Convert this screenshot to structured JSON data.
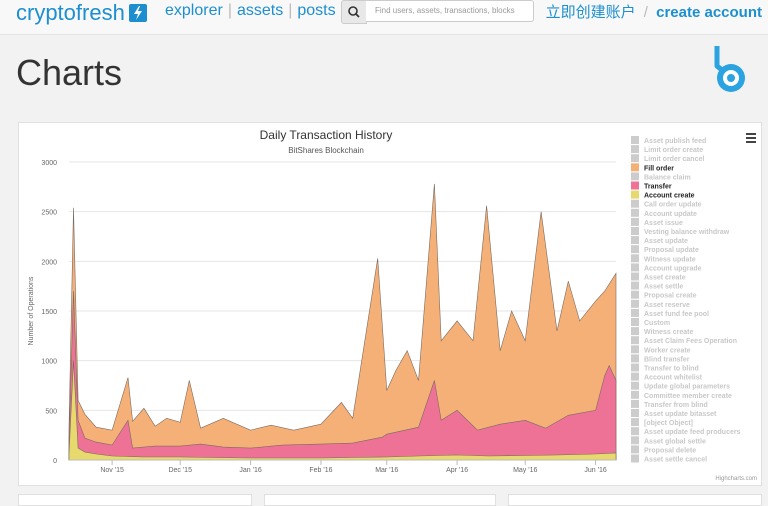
{
  "nav": {
    "brand": "cryptofresh",
    "links": [
      "explorer",
      "assets",
      "posts"
    ],
    "search_placeholder": "Find users, assets, transactions, blocks",
    "signup_label": "立即创建账户",
    "create_label": "create account"
  },
  "page": {
    "title": "Charts"
  },
  "chart_data": {
    "type": "area",
    "stacked": true,
    "title": "Daily Transaction History",
    "subtitle": "BitShares Blockchain",
    "ylabel": "Number of Operations",
    "xlabel": "",
    "ylim": [
      0,
      3000
    ],
    "yticks": [
      0,
      500,
      1000,
      1500,
      2000,
      2500,
      3000
    ],
    "x_ticks": [
      "Nov '15",
      "Dec '15",
      "Jan '16",
      "Feb '16",
      "Mar '16",
      "Apr '16",
      "May '16",
      "Jun '16"
    ],
    "x_range": [
      "2015-10-13",
      "2016-06-10"
    ],
    "grid": true,
    "legend_position": "right",
    "credits": "Highcharts.com",
    "colors": {
      "account_create": "#e7d96d",
      "transfer": "#ee7196",
      "fill_order": "#f5b078",
      "outline": "#7a6a60"
    },
    "legend": [
      {
        "name": "Asset publish feed",
        "active": false
      },
      {
        "name": "Limit order create",
        "active": false
      },
      {
        "name": "Limit order cancel",
        "active": false
      },
      {
        "name": "Fill order",
        "active": true,
        "color": "#f5b078"
      },
      {
        "name": "Balance claim",
        "active": false
      },
      {
        "name": "Transfer",
        "active": true,
        "color": "#ee7196"
      },
      {
        "name": "Account create",
        "active": true,
        "color": "#e7d96d"
      },
      {
        "name": "Call order update",
        "active": false
      },
      {
        "name": "Account update",
        "active": false
      },
      {
        "name": "Asset issue",
        "active": false
      },
      {
        "name": "Vesting balance withdraw",
        "active": false
      },
      {
        "name": "Asset update",
        "active": false
      },
      {
        "name": "Proposal update",
        "active": false
      },
      {
        "name": "Witness update",
        "active": false
      },
      {
        "name": "Account upgrade",
        "active": false
      },
      {
        "name": "Asset create",
        "active": false
      },
      {
        "name": "Asset settle",
        "active": false
      },
      {
        "name": "Proposal create",
        "active": false
      },
      {
        "name": "Asset reserve",
        "active": false
      },
      {
        "name": "Asset fund fee pool",
        "active": false
      },
      {
        "name": "Custom",
        "active": false
      },
      {
        "name": "Witness create",
        "active": false
      },
      {
        "name": "Asset Claim Fees Operation",
        "active": false
      },
      {
        "name": "Worker create",
        "active": false
      },
      {
        "name": "Blind transfer",
        "active": false
      },
      {
        "name": "Transfer to blind",
        "active": false
      },
      {
        "name": "Account whitelist",
        "active": false
      },
      {
        "name": "Update global parameters",
        "active": false
      },
      {
        "name": "Committee member create",
        "active": false
      },
      {
        "name": "Transfer from blind",
        "active": false
      },
      {
        "name": "Asset update bitasset",
        "active": false
      },
      {
        "name": "[object Object]",
        "active": false
      },
      {
        "name": "Asset update feed producers",
        "active": false
      },
      {
        "name": "Asset global settle",
        "active": false
      },
      {
        "name": "Proposal delete",
        "active": false
      },
      {
        "name": "Asset settle cancel",
        "active": false
      }
    ],
    "series_points": [
      {
        "name": "Account create",
        "values": [
          [
            "2015-10-13",
            60
          ],
          [
            "2015-10-15",
            1000
          ],
          [
            "2015-10-17",
            120
          ],
          [
            "2015-10-20",
            80
          ],
          [
            "2015-10-25",
            60
          ],
          [
            "2015-11-01",
            40
          ],
          [
            "2015-11-15",
            30
          ],
          [
            "2015-12-01",
            30
          ],
          [
            "2015-12-15",
            25
          ],
          [
            "2016-01-01",
            20
          ],
          [
            "2016-01-15",
            20
          ],
          [
            "2016-02-01",
            20
          ],
          [
            "2016-02-15",
            25
          ],
          [
            "2016-03-01",
            30
          ],
          [
            "2016-03-15",
            40
          ],
          [
            "2016-04-01",
            50
          ],
          [
            "2016-04-15",
            40
          ],
          [
            "2016-05-01",
            45
          ],
          [
            "2016-05-15",
            50
          ],
          [
            "2016-06-01",
            60
          ],
          [
            "2016-06-10",
            70
          ]
        ]
      },
      {
        "name": "Transfer",
        "values": [
          [
            "2015-10-13",
            200
          ],
          [
            "2015-10-15",
            1700
          ],
          [
            "2015-10-17",
            400
          ],
          [
            "2015-10-20",
            220
          ],
          [
            "2015-10-25",
            180
          ],
          [
            "2015-11-01",
            150
          ],
          [
            "2015-11-08",
            400
          ],
          [
            "2015-11-10",
            120
          ],
          [
            "2015-11-20",
            140
          ],
          [
            "2015-12-01",
            140
          ],
          [
            "2015-12-10",
            160
          ],
          [
            "2015-12-20",
            130
          ],
          [
            "2016-01-01",
            120
          ],
          [
            "2016-01-15",
            150
          ],
          [
            "2016-02-01",
            160
          ],
          [
            "2016-02-15",
            170
          ],
          [
            "2016-02-28",
            230
          ],
          [
            "2016-03-01",
            260
          ],
          [
            "2016-03-15",
            330
          ],
          [
            "2016-03-22",
            800
          ],
          [
            "2016-03-25",
            400
          ],
          [
            "2016-04-01",
            500
          ],
          [
            "2016-04-10",
            300
          ],
          [
            "2016-04-20",
            360
          ],
          [
            "2016-05-01",
            400
          ],
          [
            "2016-05-10",
            320
          ],
          [
            "2016-05-20",
            450
          ],
          [
            "2016-06-01",
            500
          ],
          [
            "2016-06-05",
            850
          ],
          [
            "2016-06-07",
            950
          ],
          [
            "2016-06-10",
            800
          ]
        ]
      },
      {
        "name": "Fill order",
        "values": [
          [
            "2015-10-13",
            320
          ],
          [
            "2015-10-15",
            2540
          ],
          [
            "2015-10-17",
            600
          ],
          [
            "2015-10-20",
            460
          ],
          [
            "2015-10-25",
            330
          ],
          [
            "2015-11-01",
            300
          ],
          [
            "2015-11-08",
            830
          ],
          [
            "2015-11-10",
            390
          ],
          [
            "2015-11-15",
            520
          ],
          [
            "2015-11-20",
            340
          ],
          [
            "2015-11-25",
            420
          ],
          [
            "2015-12-01",
            380
          ],
          [
            "2015-12-05",
            800
          ],
          [
            "2015-12-10",
            320
          ],
          [
            "2015-12-20",
            420
          ],
          [
            "2016-01-01",
            300
          ],
          [
            "2016-01-10",
            350
          ],
          [
            "2016-01-20",
            300
          ],
          [
            "2016-02-01",
            360
          ],
          [
            "2016-02-10",
            580
          ],
          [
            "2016-02-15",
            420
          ],
          [
            "2016-02-26",
            2030
          ],
          [
            "2016-03-01",
            700
          ],
          [
            "2016-03-05",
            900
          ],
          [
            "2016-03-10",
            1100
          ],
          [
            "2016-03-15",
            800
          ],
          [
            "2016-03-22",
            2780
          ],
          [
            "2016-03-25",
            1200
          ],
          [
            "2016-04-01",
            1400
          ],
          [
            "2016-04-08",
            1200
          ],
          [
            "2016-04-14",
            2560
          ],
          [
            "2016-04-20",
            1100
          ],
          [
            "2016-04-25",
            1500
          ],
          [
            "2016-05-01",
            1200
          ],
          [
            "2016-05-08",
            2500
          ],
          [
            "2016-05-15",
            1300
          ],
          [
            "2016-05-20",
            1800
          ],
          [
            "2016-05-25",
            1400
          ],
          [
            "2016-06-01",
            1600
          ],
          [
            "2016-06-05",
            1700
          ],
          [
            "2016-06-10",
            1880
          ]
        ]
      }
    ]
  }
}
